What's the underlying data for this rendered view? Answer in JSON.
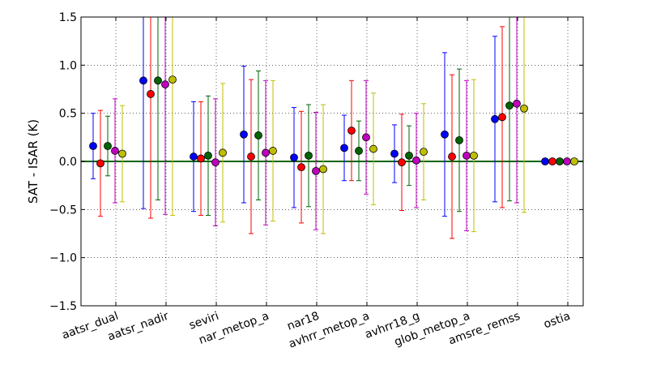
{
  "chart_data": {
    "type": "scatter",
    "ylabel": "SAT - ISAR (K)",
    "xlabel": "",
    "title": "",
    "ylim": [
      -1.5,
      1.5
    ],
    "yticks": [
      -1.5,
      -1.0,
      -0.5,
      0.0,
      0.5,
      1.0,
      1.5
    ],
    "ytick_labels": [
      "−1.5",
      "−1.0",
      "−0.5",
      "0.0",
      "0.5",
      "1.0",
      "1.5"
    ],
    "grid": true,
    "zero_line_color": "#006400",
    "categories": [
      "aatsr_dual",
      "aatsr_nadir",
      "seviri",
      "nar_metop_a",
      "nar18",
      "avhrr_metop_a",
      "avhrr18_g",
      "glob_metop_a",
      "amsre_remss",
      "ostia"
    ],
    "series": [
      {
        "color": "#0000ff",
        "values": [
          0.16,
          0.84,
          0.05,
          0.28,
          0.04,
          0.14,
          0.08,
          0.28,
          0.44,
          0.0
        ],
        "errors": [
          0.34,
          1.33,
          0.57,
          0.71,
          0.52,
          0.34,
          0.3,
          0.85,
          0.86,
          0.0
        ]
      },
      {
        "color": "#ff0000",
        "values": [
          -0.02,
          0.7,
          0.03,
          0.05,
          -0.06,
          0.32,
          -0.01,
          0.05,
          0.46,
          0.0
        ],
        "errors": [
          0.55,
          1.29,
          0.59,
          0.8,
          0.58,
          0.52,
          0.5,
          0.85,
          0.94,
          0.0
        ]
      },
      {
        "color": "#006400",
        "values": [
          0.16,
          0.84,
          0.06,
          0.27,
          0.06,
          0.11,
          0.06,
          0.22,
          0.58,
          0.0
        ],
        "errors": [
          0.31,
          1.24,
          0.62,
          0.67,
          0.53,
          0.31,
          0.31,
          0.74,
          0.99,
          0.0
        ]
      },
      {
        "color": "#bf00bf",
        "values": [
          0.11,
          0.8,
          -0.01,
          0.09,
          -0.1,
          0.25,
          0.01,
          0.06,
          0.6,
          0.0
        ],
        "errors": [
          0.54,
          1.35,
          0.66,
          0.75,
          0.61,
          0.59,
          0.49,
          0.78,
          1.03,
          0.0
        ]
      },
      {
        "color": "#bfbf00",
        "values": [
          0.08,
          0.85,
          0.09,
          0.11,
          -0.08,
          0.13,
          0.1,
          0.06,
          0.55,
          0.0
        ],
        "errors": [
          0.5,
          1.41,
          0.72,
          0.73,
          0.67,
          0.58,
          0.5,
          0.79,
          1.08,
          0.0
        ]
      }
    ]
  }
}
